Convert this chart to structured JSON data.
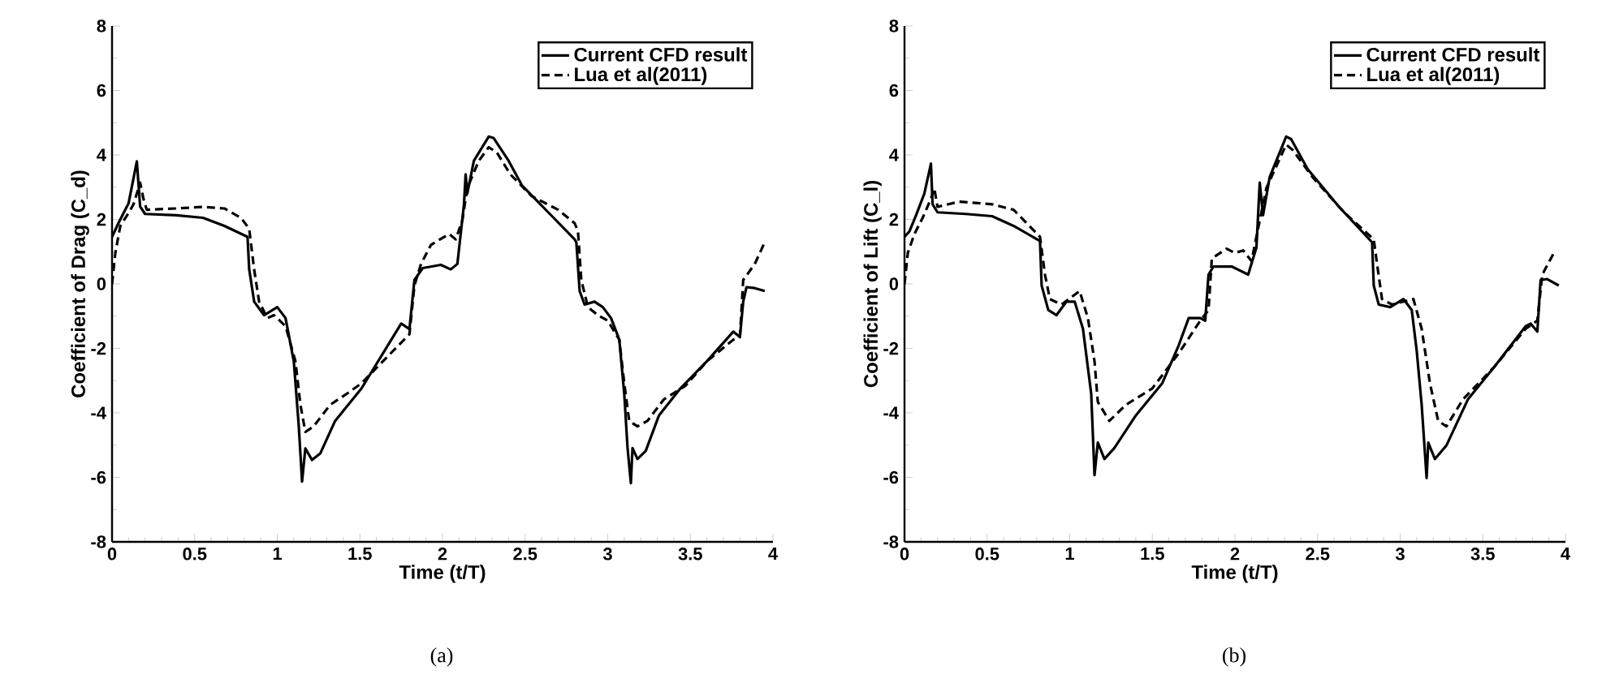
{
  "chart_data": [
    {
      "type": "line",
      "xlabel": "Time (t/T)",
      "ylabel": "Coefficient of Drag (C_d)",
      "xlim": [
        0,
        4
      ],
      "ylim": [
        -8,
        8
      ],
      "xticks": [
        0,
        0.5,
        1,
        1.5,
        2,
        2.5,
        3,
        3.5,
        4
      ],
      "yticks": [
        -8,
        -6,
        -4,
        -2,
        0,
        2,
        4,
        6,
        8
      ],
      "legend": "top right",
      "annotations": [
        "(a)"
      ],
      "series": [
        {
          "name": "Current CFD result",
          "color": "#000000",
          "line_style": "solid",
          "x": [
            0,
            0.04,
            0.1,
            0.15,
            0.17,
            0.2,
            0.39,
            0.55,
            0.68,
            0.82,
            0.83,
            0.86,
            0.92,
            1.0,
            1.05,
            1.1,
            1.13,
            1.15,
            1.17,
            1.21,
            1.26,
            1.35,
            1.51,
            1.67,
            1.75,
            1.8,
            1.83,
            1.88,
            1.99,
            2.05,
            2.09,
            2.13,
            2.14,
            2.15,
            2.19,
            2.28,
            2.31,
            2.4,
            2.48,
            2.64,
            2.8,
            2.81,
            2.83,
            2.86,
            2.92,
            2.97,
            3.02,
            3.07,
            3.1,
            3.12,
            3.14,
            3.15,
            3.18,
            3.23,
            3.31,
            3.44,
            3.6,
            3.76,
            3.8,
            3.82,
            3.84,
            3.89,
            3.95
          ],
          "values": [
            1.46,
            1.9,
            2.5,
            3.8,
            2.4,
            2.17,
            2.13,
            2.05,
            1.8,
            1.46,
            0.45,
            -0.55,
            -0.97,
            -0.72,
            -1.06,
            -2.4,
            -4.4,
            -6.13,
            -5.1,
            -5.46,
            -5.26,
            -4.25,
            -3.24,
            -1.9,
            -1.23,
            -1.4,
            0.12,
            0.49,
            0.59,
            0.45,
            0.62,
            2.47,
            3.4,
            2.8,
            3.82,
            4.57,
            4.52,
            3.82,
            3.06,
            2.22,
            1.38,
            1.29,
            -0.22,
            -0.64,
            -0.55,
            -0.72,
            -1.06,
            -1.73,
            -3.41,
            -5.09,
            -6.18,
            -5.09,
            -5.43,
            -5.18,
            -4.08,
            -3.24,
            -2.4,
            -1.48,
            -1.65,
            -0.55,
            -0.1,
            -0.13,
            -0.22
          ]
        },
        {
          "name": "Lua et al(2011)",
          "color": "#000000",
          "line_style": "dashed",
          "x": [
            0,
            0.02,
            0.05,
            0.1,
            0.13,
            0.17,
            0.19,
            0.21,
            0.39,
            0.55,
            0.68,
            0.78,
            0.83,
            0.86,
            0.89,
            0.94,
            0.98,
            1.05,
            1.11,
            1.14,
            1.17,
            1.22,
            1.32,
            1.42,
            1.51,
            1.67,
            1.8,
            1.83,
            1.87,
            1.93,
            2.04,
            2.08,
            2.12,
            2.15,
            2.22,
            2.28,
            2.33,
            2.41,
            2.54,
            2.7,
            2.8,
            2.82,
            2.84,
            2.88,
            2.94,
            3.0,
            3.07,
            3.1,
            3.13,
            3.18,
            3.24,
            3.34,
            3.47,
            3.6,
            3.76,
            3.8,
            3.82,
            3.89,
            3.95
          ],
          "values": [
            0,
            0.96,
            1.8,
            2.2,
            2.47,
            3.14,
            2.64,
            2.3,
            2.34,
            2.39,
            2.34,
            2.05,
            1.71,
            0.45,
            -0.55,
            -1.06,
            -0.97,
            -1.31,
            -2.4,
            -3.75,
            -4.59,
            -4.42,
            -3.75,
            -3.41,
            -3.08,
            -2.24,
            -1.56,
            -0.05,
            0.62,
            1.21,
            1.55,
            1.38,
            1.97,
            2.97,
            3.82,
            4.24,
            4.07,
            3.4,
            2.72,
            2.3,
            1.88,
            1.63,
            0.12,
            -0.72,
            -0.97,
            -1.14,
            -1.73,
            -3.08,
            -4.25,
            -4.42,
            -4.25,
            -3.58,
            -3.16,
            -2.4,
            -1.73,
            -1.65,
            0.12,
            0.62,
            1.29
          ]
        }
      ]
    },
    {
      "type": "line",
      "xlabel": "Time (t/T)",
      "ylabel": "Coefficient of Lift (C_l)",
      "xlim": [
        0,
        4
      ],
      "ylim": [
        -8,
        8
      ],
      "xticks": [
        0,
        0.5,
        1,
        1.5,
        2,
        2.5,
        3,
        3.5,
        4
      ],
      "yticks": [
        -8,
        -6,
        -4,
        -2,
        0,
        2,
        4,
        6,
        8
      ],
      "legend": "top right",
      "annotations": [
        "(b)"
      ],
      "series": [
        {
          "name": "Current CFD result",
          "color": "#000000",
          "line_style": "solid",
          "x": [
            0,
            0.03,
            0.07,
            0.12,
            0.16,
            0.17,
            0.2,
            0.37,
            0.53,
            0.66,
            0.82,
            0.83,
            0.87,
            0.92,
            0.98,
            1.03,
            1.08,
            1.13,
            1.15,
            1.17,
            1.21,
            1.27,
            1.4,
            1.56,
            1.66,
            1.72,
            1.79,
            1.82,
            1.84,
            1.87,
            1.98,
            2.08,
            2.13,
            2.15,
            2.17,
            2.21,
            2.31,
            2.34,
            2.44,
            2.63,
            2.83,
            2.84,
            2.87,
            2.94,
            3.02,
            3.07,
            3.1,
            3.13,
            3.16,
            3.17,
            3.21,
            3.28,
            3.41,
            3.57,
            3.76,
            3.79,
            3.83,
            3.85,
            3.89,
            3.96
          ],
          "values": [
            1.46,
            1.63,
            2.13,
            2.8,
            3.73,
            2.47,
            2.22,
            2.17,
            2.1,
            1.8,
            1.33,
            -0.05,
            -0.81,
            -0.97,
            -0.55,
            -0.55,
            -1.39,
            -3.41,
            -5.93,
            -4.92,
            -5.43,
            -5.09,
            -4.08,
            -3.08,
            -1.9,
            -1.06,
            -1.06,
            -1.14,
            0.29,
            0.54,
            0.54,
            0.29,
            1.13,
            3.14,
            2.13,
            3.31,
            4.57,
            4.49,
            3.56,
            2.39,
            1.29,
            -0.05,
            -0.64,
            -0.72,
            -0.47,
            -0.81,
            -2.07,
            -3.75,
            -6.02,
            -4.92,
            -5.43,
            -5.01,
            -3.58,
            -2.57,
            -1.31,
            -1.23,
            -1.48,
            0.12,
            0.15,
            -0.05
          ]
        },
        {
          "name": "Lua et al(2011)",
          "color": "#000000",
          "line_style": "dashed",
          "x": [
            0,
            0.02,
            0.06,
            0.11,
            0.16,
            0.18,
            0.2,
            0.33,
            0.53,
            0.66,
            0.82,
            0.85,
            0.88,
            0.95,
            1.06,
            1.11,
            1.15,
            1.17,
            1.24,
            1.34,
            1.5,
            1.66,
            1.79,
            1.84,
            1.86,
            1.95,
            2.0,
            2.05,
            2.1,
            2.15,
            2.19,
            2.31,
            2.35,
            2.47,
            2.66,
            2.84,
            2.86,
            2.89,
            2.95,
            3.08,
            3.13,
            3.18,
            3.23,
            3.28,
            3.38,
            3.57,
            3.76,
            3.83,
            3.86,
            3.93
          ],
          "values": [
            0,
            0.96,
            1.55,
            2.05,
            2.64,
            2.97,
            2.39,
            2.55,
            2.47,
            2.3,
            1.46,
            0.29,
            -0.47,
            -0.64,
            -0.22,
            -1.06,
            -2.4,
            -3.66,
            -4.25,
            -3.75,
            -3.24,
            -2.15,
            -1.14,
            -0.81,
            0.79,
            1.09,
            0.96,
            1.04,
            0.71,
            1.97,
            2.97,
            4.32,
            4.15,
            3.31,
            2.22,
            1.38,
            0.62,
            -0.47,
            -0.64,
            -0.47,
            -1.39,
            -3.08,
            -4.25,
            -4.42,
            -3.58,
            -2.57,
            -1.39,
            -1.14,
            0.29,
            0.96
          ]
        }
      ]
    }
  ]
}
